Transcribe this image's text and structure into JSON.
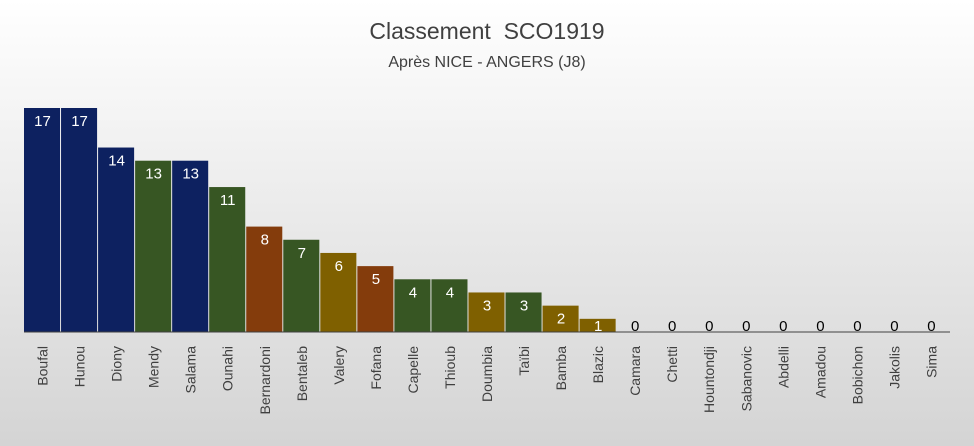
{
  "chart_data": {
    "type": "bar",
    "title": "Classement  SCO1919",
    "subtitle": "Après NICE - ANGERS (J8)",
    "xlabel": "",
    "ylabel": "",
    "ylim": [
      0,
      17
    ],
    "grid": false,
    "legend": "none",
    "colors": {
      "navy": "#0d2160",
      "green": "#375623",
      "brown": "#843c0c",
      "olive": "#7f6000",
      "axis": "#404040",
      "label_light": "#ffffff",
      "label_dark": "#000000",
      "background_top": "#ffffff",
      "background_bottom": "#d4d4d4"
    },
    "categories": [
      "Boufal",
      "Hunou",
      "Diony",
      "Mendy",
      "Salama",
      "Ounahi",
      "Bernardoni",
      "Bentaleb",
      "Valery",
      "Fofana",
      "Capelle",
      "Thioub",
      "Doumbia",
      "Taïbi",
      "Bamba",
      "Blazic",
      "Camara",
      "Chetti",
      "Hountondji",
      "Sabanovic",
      "Abdelli",
      "Amadou",
      "Bobichon",
      "Jakolis",
      "Sima"
    ],
    "values": [
      17,
      17,
      14,
      13,
      13,
      11,
      8,
      7,
      6,
      5,
      4,
      4,
      3,
      3,
      2,
      1,
      0,
      0,
      0,
      0,
      0,
      0,
      0,
      0,
      0
    ],
    "bar_colors": [
      "navy",
      "navy",
      "navy",
      "green",
      "navy",
      "green",
      "brown",
      "green",
      "olive",
      "brown",
      "green",
      "green",
      "olive",
      "green",
      "olive",
      "olive",
      "olive",
      "olive",
      "olive",
      "olive",
      "olive",
      "olive",
      "olive",
      "olive",
      "olive"
    ]
  }
}
